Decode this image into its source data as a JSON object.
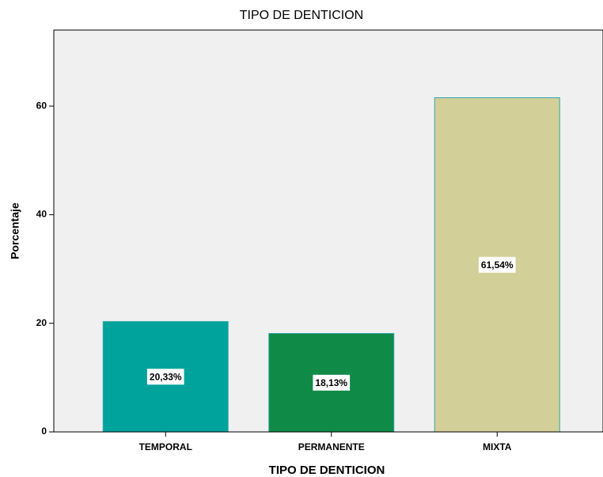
{
  "chart_data": {
    "type": "bar",
    "title": "TIPO DE DENTICION",
    "x_label": "TIPO DE DENTICION",
    "y_label": "Porcentaje",
    "categories": [
      "TEMPORAL",
      "PERMANENTE",
      "MIXTA"
    ],
    "values": [
      20.33,
      18.13,
      61.54
    ],
    "value_labels": [
      "20,33%",
      "18,13%",
      "61,54%"
    ],
    "colors": [
      "#00a39c",
      "#0f8a47",
      "#d3cf98"
    ],
    "ylim": [
      0,
      74
    ],
    "yticks": [
      0,
      20,
      40,
      60
    ],
    "grid": false
  }
}
